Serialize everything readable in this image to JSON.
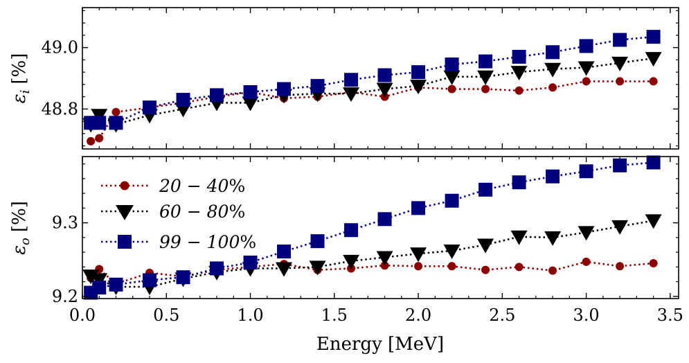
{
  "chart_data": [
    {
      "type": "line",
      "panel": "top",
      "ylabel": "ε_i [%]",
      "ylabel_main": "ε",
      "ylabel_sub": "i",
      "ylabel_unit": "[%]",
      "xlabel": "",
      "xlim": [
        0.0,
        3.55
      ],
      "ylim": [
        48.67,
        49.13
      ],
      "yticks": [
        48.8,
        49.0
      ],
      "ytick_labels": [
        "48.8",
        "49.0"
      ],
      "series": [
        {
          "name": "20 − 40%",
          "color": "#8b0000",
          "marker": "circle",
          "x": [
            0.05,
            0.1,
            0.2,
            0.4,
            0.6,
            0.8,
            1.0,
            1.2,
            1.4,
            1.6,
            1.8,
            2.0,
            2.2,
            2.4,
            2.6,
            2.8,
            3.0,
            3.2,
            3.4
          ],
          "values": [
            48.695,
            48.705,
            48.79,
            48.805,
            48.82,
            48.84,
            48.855,
            48.835,
            48.84,
            48.855,
            48.84,
            48.87,
            48.865,
            48.865,
            48.86,
            48.87,
            48.89,
            48.89,
            48.89
          ]
        },
        {
          "name": "60 − 80%",
          "color": "#000000",
          "marker": "triangle-down",
          "x": [
            0.05,
            0.1,
            0.2,
            0.4,
            0.6,
            0.8,
            1.0,
            1.2,
            1.4,
            1.6,
            1.8,
            2.0,
            2.2,
            2.4,
            2.6,
            2.8,
            3.0,
            3.2,
            3.4
          ],
          "values": [
            48.75,
            48.78,
            48.75,
            48.78,
            48.8,
            48.82,
            48.82,
            48.845,
            48.85,
            48.85,
            48.865,
            48.875,
            48.905,
            48.905,
            48.92,
            48.93,
            48.935,
            48.95,
            48.965
          ]
        },
        {
          "name": "99 − 100%",
          "color": "#00007f",
          "marker": "square",
          "x": [
            0.05,
            0.1,
            0.2,
            0.4,
            0.6,
            0.8,
            1.0,
            1.2,
            1.4,
            1.6,
            1.8,
            2.0,
            2.2,
            2.4,
            2.6,
            2.8,
            3.0,
            3.2,
            3.4
          ],
          "values": [
            48.755,
            48.755,
            48.755,
            48.805,
            48.83,
            48.845,
            48.855,
            48.865,
            48.875,
            48.895,
            48.91,
            48.92,
            48.945,
            48.955,
            48.97,
            48.985,
            49.005,
            49.025,
            49.035
          ]
        }
      ]
    },
    {
      "type": "line",
      "panel": "bottom",
      "ylabel": "ε_o [%]",
      "ylabel_main": "ε",
      "ylabel_sub": "o",
      "ylabel_unit": "[%]",
      "xlabel": "Energy [MeV]",
      "xlim": [
        0.0,
        3.55
      ],
      "ylim": [
        9.197,
        9.39
      ],
      "yticks": [
        9.2,
        9.3
      ],
      "ytick_labels": [
        "9.2",
        "9.3"
      ],
      "xticks": [
        0.0,
        0.5,
        1.0,
        1.5,
        2.0,
        2.5,
        3.0,
        3.5
      ],
      "xtick_labels": [
        "0.0",
        "0.5",
        "1.0",
        "1.5",
        "2.0",
        "2.5",
        "3.0",
        "3.5"
      ],
      "legend_position": "top-left",
      "series": [
        {
          "name": "20 − 40%",
          "color": "#8b0000",
          "marker": "circle",
          "x": [
            0.05,
            0.1,
            0.2,
            0.4,
            0.6,
            0.8,
            1.0,
            1.2,
            1.4,
            1.6,
            1.8,
            2.0,
            2.2,
            2.4,
            2.6,
            2.8,
            3.0,
            3.2,
            3.4
          ],
          "values": [
            9.225,
            9.237,
            9.217,
            9.232,
            9.227,
            9.236,
            9.24,
            9.244,
            9.236,
            9.238,
            9.242,
            9.241,
            9.241,
            9.236,
            9.24,
            9.235,
            9.247,
            9.241,
            9.245
          ]
        },
        {
          "name": "60 − 80%",
          "color": "#000000",
          "marker": "triangle-down",
          "x": [
            0.05,
            0.1,
            0.2,
            0.4,
            0.6,
            0.8,
            1.0,
            1.2,
            1.4,
            1.6,
            1.8,
            2.0,
            2.2,
            2.4,
            2.6,
            2.8,
            3.0,
            3.2,
            3.4
          ],
          "values": [
            9.228,
            9.223,
            9.213,
            9.213,
            9.224,
            9.233,
            9.238,
            9.238,
            9.24,
            9.248,
            9.253,
            9.258,
            9.262,
            9.27,
            9.281,
            9.28,
            9.287,
            9.295,
            9.303
          ]
        },
        {
          "name": "99 − 100%",
          "color": "#00007f",
          "marker": "square",
          "x": [
            0.05,
            0.1,
            0.2,
            0.4,
            0.6,
            0.8,
            1.0,
            1.2,
            1.4,
            1.6,
            1.8,
            2.0,
            2.2,
            2.4,
            2.6,
            2.8,
            3.0,
            3.2,
            3.4
          ],
          "values": [
            9.205,
            9.212,
            9.216,
            9.222,
            9.226,
            9.238,
            9.246,
            9.261,
            9.275,
            9.29,
            9.305,
            9.32,
            9.33,
            9.345,
            9.355,
            9.363,
            9.37,
            9.378,
            9.382
          ]
        }
      ]
    }
  ],
  "legend": {
    "items": [
      {
        "label": "20 − 40%",
        "label_prefix": "20 − 40",
        "label_suffix": "%",
        "color": "#8b0000",
        "marker": "circle"
      },
      {
        "label": "60 − 80%",
        "label_prefix": "60 − 80",
        "label_suffix": "%",
        "color": "#000000",
        "marker": "triangle-down"
      },
      {
        "label": "99 − 100%",
        "label_prefix": "99 − 100",
        "label_suffix": "%",
        "color": "#00007f",
        "marker": "square"
      }
    ]
  }
}
